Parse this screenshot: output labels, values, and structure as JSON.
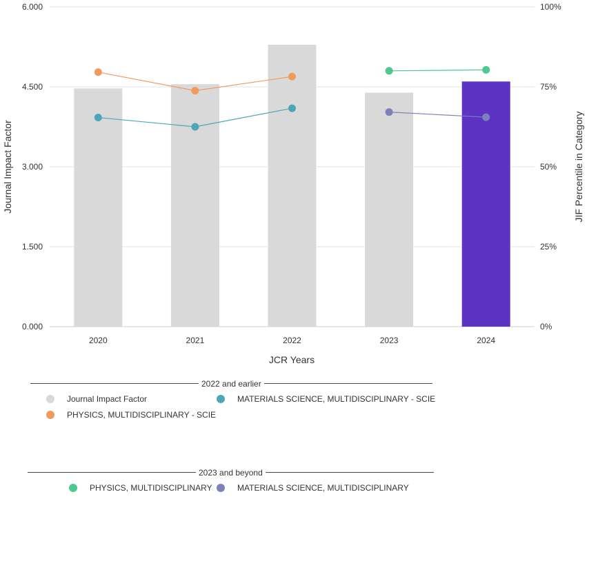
{
  "chart_data": {
    "type": "bar",
    "categories": [
      "2020",
      "2021",
      "2022",
      "2023",
      "2024"
    ],
    "xlabel": "JCR Years",
    "ylabel": "Journal Impact Factor",
    "y2label": "JIF Percentile in Category",
    "ylim": [
      0,
      6
    ],
    "y2lim": [
      0,
      100
    ],
    "yticks": [
      "0.000",
      "1.500",
      "3.000",
      "4.500",
      "6.000"
    ],
    "y2ticks": [
      "0%",
      "25%",
      "50%",
      "75%",
      "100%"
    ],
    "grid": true,
    "bars": {
      "name": "Journal Impact Factor",
      "values": [
        4.47,
        4.55,
        5.29,
        4.39,
        4.6
      ],
      "color": "#d9d9d9",
      "highlight_color": "#5c33c2",
      "highlight_index": 4
    },
    "lines": [
      {
        "name": "PHYSICS, MULTIDISCIPLINARY - SCIE",
        "color": "#f2995e",
        "x": [
          "2020",
          "2021",
          "2022"
        ],
        "values": [
          79.6,
          73.8,
          78.2
        ]
      },
      {
        "name": "MATERIALS SCIENCE, MULTIDISCIPLINARY - SCIE",
        "color": "#4ca6b8",
        "x": [
          "2020",
          "2021",
          "2022"
        ],
        "values": [
          65.4,
          62.5,
          68.3
        ]
      },
      {
        "name": "PHYSICS, MULTIDISCIPLINARY",
        "color": "#4dc98f",
        "x": [
          "2023",
          "2024"
        ],
        "values": [
          80.0,
          80.3
        ]
      },
      {
        "name": "MATERIALS SCIENCE, MULTIDISCIPLINARY",
        "color": "#7e7fbd",
        "x": [
          "2023",
          "2024"
        ],
        "values": [
          67.1,
          65.5
        ]
      }
    ]
  },
  "legend": {
    "group1_title": "2022 and earlier",
    "group2_title": "2023 and beyond",
    "group1_items": [
      {
        "label": "Journal Impact Factor",
        "color": "#d9d9d9"
      },
      {
        "label": "MATERIALS SCIENCE, MULTIDISCIPLINARY - SCIE",
        "color": "#4ca6b8"
      },
      {
        "label": "PHYSICS, MULTIDISCIPLINARY - SCIE",
        "color": "#f2995e"
      }
    ],
    "group2_items": [
      {
        "label": "PHYSICS, MULTIDISCIPLINARY",
        "color": "#4dc98f"
      },
      {
        "label": "MATERIALS SCIENCE, MULTIDISCIPLINARY",
        "color": "#7e7fbd"
      }
    ]
  }
}
